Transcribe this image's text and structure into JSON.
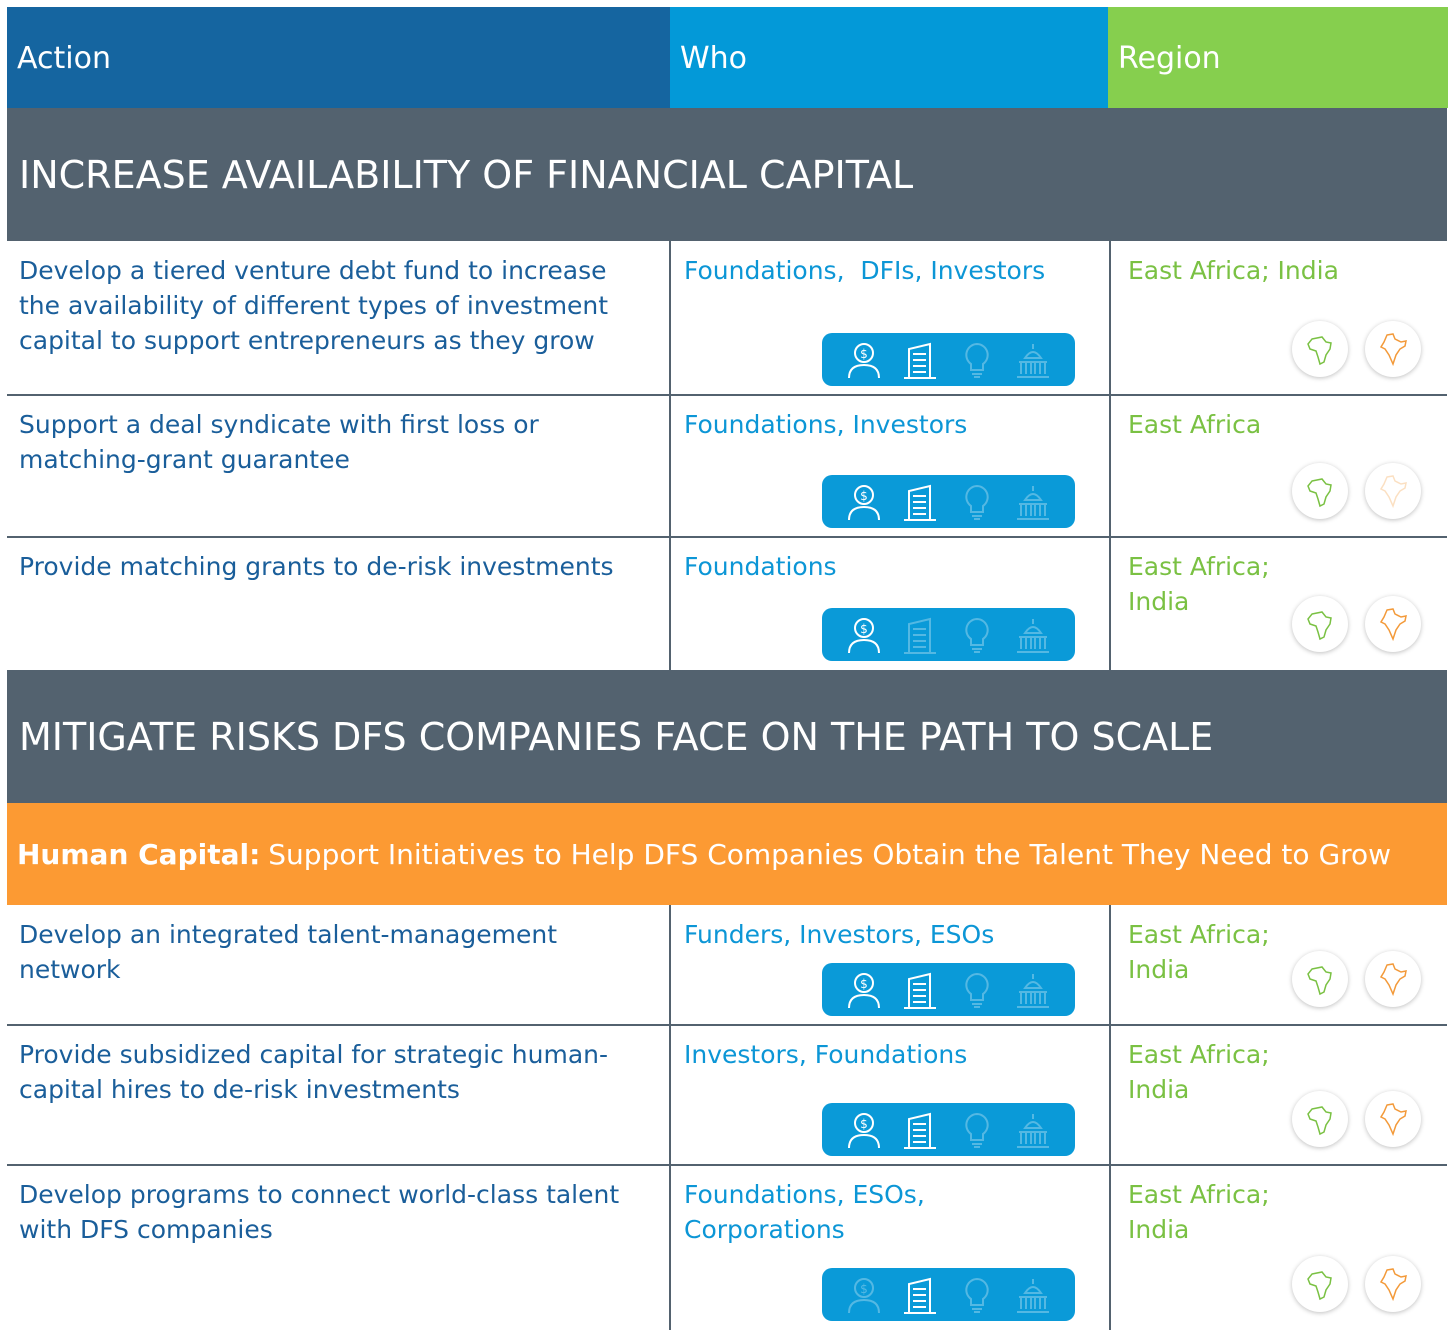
{
  "header": {
    "columns": [
      "Action",
      "Who",
      "Region"
    ]
  },
  "sections": [
    {
      "title": "INCREASE AVAILABILITY OF FINANCIAL CAPITAL",
      "rows": [
        {
          "action": "Develop a tiered venture debt fund to increase the availability of different types of investment capital to support entrepreneurs as they grow",
          "who": "Foundations,  DFIs, Investors",
          "region": "East Africa; India",
          "who_icons": [
            true,
            true,
            false,
            false
          ],
          "region_icons": [
            true,
            true
          ]
        },
        {
          "action": "Support a deal syndicate with first loss or matching-grant guarantee",
          "who": "Foundations, Investors",
          "region": "East Africa",
          "who_icons": [
            true,
            true,
            false,
            false
          ],
          "region_icons": [
            true,
            false
          ]
        },
        {
          "action": "Provide matching grants to de-risk investments",
          "who": "Foundations",
          "region": "East Africa; India",
          "who_icons": [
            true,
            false,
            false,
            false
          ],
          "region_icons": [
            true,
            true
          ]
        }
      ]
    },
    {
      "title": "MITIGATE RISKS DFS COMPANIES FACE ON THE PATH TO SCALE",
      "subsection": {
        "label": "Human Capital:",
        "text": "Support Initiatives to Help DFS Companies Obtain the Talent They Need to Grow"
      },
      "rows": [
        {
          "action": "Develop an integrated talent-management network",
          "who": "Funders, Investors, ESOs",
          "region": "East Africa; India",
          "who_icons": [
            true,
            true,
            false,
            false
          ],
          "region_icons": [
            true,
            true
          ]
        },
        {
          "action": "Provide subsidized capital for strategic human-capital hires to de-risk investments",
          "who": "Investors, Foundations",
          "region": "East Africa; India",
          "who_icons": [
            true,
            true,
            false,
            false
          ],
          "region_icons": [
            true,
            true
          ]
        },
        {
          "action": "Develop programs to connect world-class talent with DFS companies",
          "who": "Foundations, ESOs, Corporations",
          "region": "East Africa; India",
          "who_icons": [
            false,
            true,
            false,
            false
          ],
          "region_icons": [
            true,
            true
          ]
        }
      ]
    }
  ]
}
